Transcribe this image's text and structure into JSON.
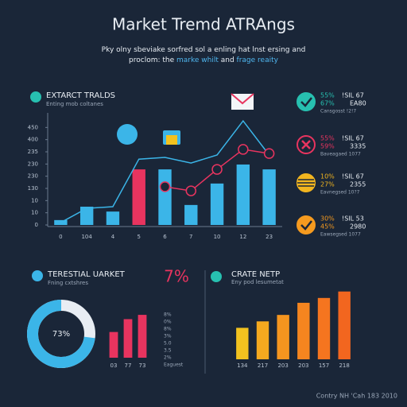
{
  "header": {
    "title": "Market Tremd ATRAngs",
    "subtitle": [
      [
        {
          "text": "Pky olny sbeviake sorfred sol a enling hat lnst ersing and",
          "color": "#e8edf3"
        }
      ],
      [
        {
          "text": "proclom: the ",
          "color": "#e8edf3"
        },
        {
          "text": "marke whilt",
          "color": "#4fb6ef"
        },
        {
          "text": " and ",
          "color": "#e8edf3"
        },
        {
          "text": "frage reaity",
          "color": "#4fb6ef"
        }
      ]
    ]
  },
  "panels": {
    "main": {
      "title": "EXTARCT TRALDS",
      "subtitle": "Enting mob coltanes"
    },
    "left": {
      "title": "TERESTIAL UARKET",
      "subtitle": "Fning cxtshres",
      "highlight": "7%",
      "side_labels": [
        "8%",
        "0%",
        "8%",
        "3%",
        "5.0",
        "3.5",
        "2%",
        "Eaguest"
      ]
    },
    "right": {
      "title": "CRATE NETP",
      "subtitle": "Eny pod lesumetat"
    }
  },
  "stats": [
    {
      "pct1": "55%",
      "val1": "!SIL 67",
      "pct2": "67%",
      "val2": "EA80",
      "note": "Cansgosst !2!7",
      "color": "#27c0b0",
      "icon": "check"
    },
    {
      "pct1": "55%",
      "val1": "!SIL 67",
      "pct2": "59%",
      "val2": "3335",
      "note": "Baveagaed 1077",
      "color": "#e8345f",
      "icon": "cross"
    },
    {
      "pct1": "10%",
      "val1": "!SIL 67",
      "pct2": "27%",
      "val2": "2355",
      "note": "Eavnegsed 10?7",
      "color": "#f2b51f",
      "icon": "stripe"
    },
    {
      "pct1": "30%",
      "val1": "!SIL 53",
      "pct2": "45%",
      "val2": "2980",
      "note": "Eawsegsed 1077",
      "color": "#f59a1f",
      "icon": "check"
    }
  ],
  "footer": "Contry NH 'Cah 183 2010",
  "chart_data": [
    {
      "type": "bar",
      "categories": [
        "0",
        "104",
        "4",
        "5",
        "6",
        "7",
        "10",
        "12",
        "23"
      ],
      "values": [
        20,
        75,
        55,
        228,
        228,
        82,
        170,
        248,
        228
      ],
      "colors": [
        "#3bb5e8",
        "#3bb5e8",
        "#3bb5e8",
        "#e8345f",
        "#3bb5e8",
        "#3bb5e8",
        "#3bb5e8",
        "#3bb5e8",
        "#3bb5e8"
      ],
      "lines": [
        {
          "color": "#3bb5e8",
          "markers": false,
          "values": [
            10,
            68,
            75,
            270,
            277,
            254,
            287,
            427,
            287
          ]
        },
        {
          "color": "#e8345f",
          "markers": true,
          "values": [
            null,
            null,
            null,
            null,
            157,
            140,
            228,
            310,
            293
          ]
        }
      ],
      "ylim": [
        0,
        450
      ],
      "yticks": [
        0,
        {
          "value": 50,
          "label": "10"
        },
        {
          "value": 100,
          "label": "10"
        },
        {
          "value": 150,
          "label": "130"
        },
        {
          "value": 200,
          "label": "230"
        },
        {
          "value": 250,
          "label": "230"
        },
        {
          "value": 300,
          "label": "235"
        },
        {
          "value": 350,
          "label": "400"
        },
        {
          "value": 400,
          "label": "450"
        }
      ]
    },
    {
      "type": "pie",
      "values": [
        73
      ],
      "value_labels": [
        "73%"
      ],
      "color": "#3bb5e8"
    },
    {
      "type": "bar",
      "categories": [
        "03",
        "77",
        "73"
      ],
      "values": [
        30,
        45,
        50
      ],
      "color": "#e8345f"
    },
    {
      "type": "bar",
      "categories": [
        "134",
        "217",
        "203",
        "203",
        "157",
        "218"
      ],
      "values": [
        39,
        47,
        55,
        70,
        76,
        84
      ],
      "colors": [
        "#f2c21f",
        "#f5a91f",
        "#f5951f",
        "#f5851f",
        "#f5751f",
        "#f2661f"
      ]
    }
  ]
}
